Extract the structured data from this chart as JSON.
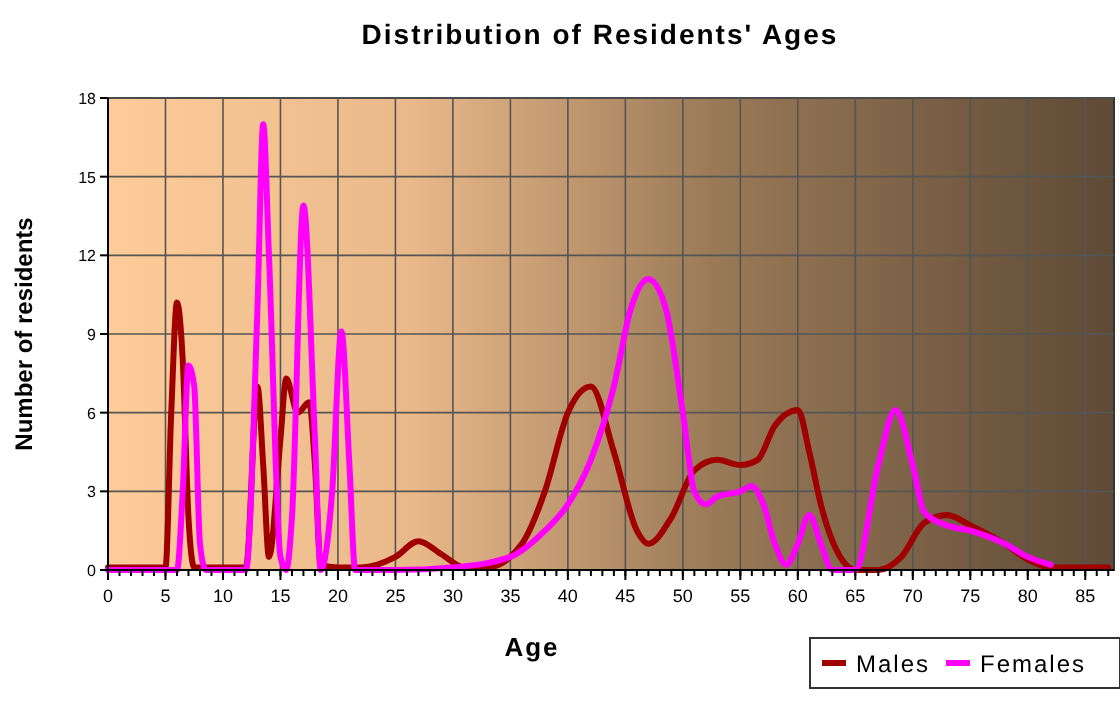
{
  "chart_data": {
    "type": "line",
    "title": "Distribution of Residents' Ages",
    "xlabel": "Age",
    "ylabel": "Number of residents",
    "xlim": [
      0,
      87.5
    ],
    "xticks": [
      0,
      5,
      10,
      15,
      20,
      25,
      30,
      35,
      40,
      45,
      50,
      55,
      60,
      65,
      70,
      75,
      80,
      85
    ],
    "ylim": [
      0,
      18
    ],
    "yticks": [
      0,
      3,
      6,
      9,
      12,
      15,
      18
    ],
    "grid": true,
    "legend": "bottom right",
    "marker": "none",
    "line_style": "solid",
    "series": [
      {
        "name": "Males",
        "color": "#a00000",
        "x": [
          0,
          5,
          5.5,
          6,
          6.5,
          7,
          7.5,
          12,
          13,
          13.5,
          14,
          15,
          15.5,
          16.5,
          17.5,
          18,
          18.5,
          20,
          22,
          25,
          27,
          29,
          31,
          33,
          36,
          38,
          40,
          42,
          44,
          46,
          47,
          49,
          51,
          53,
          55,
          56.5,
          58,
          60,
          61,
          62,
          64,
          65,
          67,
          69,
          71,
          73,
          75,
          78,
          80,
          82,
          87
        ],
        "values": [
          0.1,
          0.1,
          6,
          10.2,
          8,
          2,
          0.1,
          0.1,
          7,
          4,
          0.5,
          5,
          7.3,
          6,
          6.4,
          4,
          0.2,
          0.1,
          0.1,
          0.5,
          1.1,
          0.6,
          0.1,
          0.1,
          1,
          3,
          6,
          7,
          4.5,
          1.5,
          1,
          2,
          3.8,
          4.2,
          4,
          4.2,
          5.5,
          6.1,
          4.5,
          2.5,
          0.3,
          0,
          0,
          0.5,
          1.8,
          2.1,
          1.7,
          1,
          0.4,
          0.1,
          0.1
        ]
      },
      {
        "name": "Females",
        "color": "#ff00ff",
        "x": [
          0,
          6,
          6.5,
          7,
          7.5,
          8,
          8.5,
          12,
          13,
          13.5,
          14,
          15,
          15.5,
          16,
          17,
          18,
          18.5,
          19.5,
          20.3,
          21,
          21.5,
          25,
          30,
          35,
          38,
          40,
          42,
          44,
          45.5,
          47,
          48.5,
          50,
          51,
          52,
          53,
          55,
          56,
          57,
          58,
          59,
          60,
          61,
          62,
          63,
          65,
          67,
          68.5,
          70,
          71,
          73,
          75,
          78,
          80,
          82
        ],
        "values": [
          0,
          0,
          3,
          7.8,
          7,
          1,
          0,
          0,
          10,
          17,
          12,
          0.5,
          0,
          2,
          13.9,
          5,
          0,
          3,
          9.1,
          4,
          0,
          0,
          0.1,
          0.5,
          1.5,
          2.5,
          4.2,
          7,
          10,
          11.1,
          10,
          6,
          3,
          2.5,
          2.8,
          3,
          3.2,
          2.5,
          1,
          0.2,
          1,
          2.1,
          1,
          0,
          0,
          4,
          6.1,
          4,
          2.2,
          1.7,
          1.5,
          1,
          0.5,
          0.2
        ]
      }
    ]
  }
}
